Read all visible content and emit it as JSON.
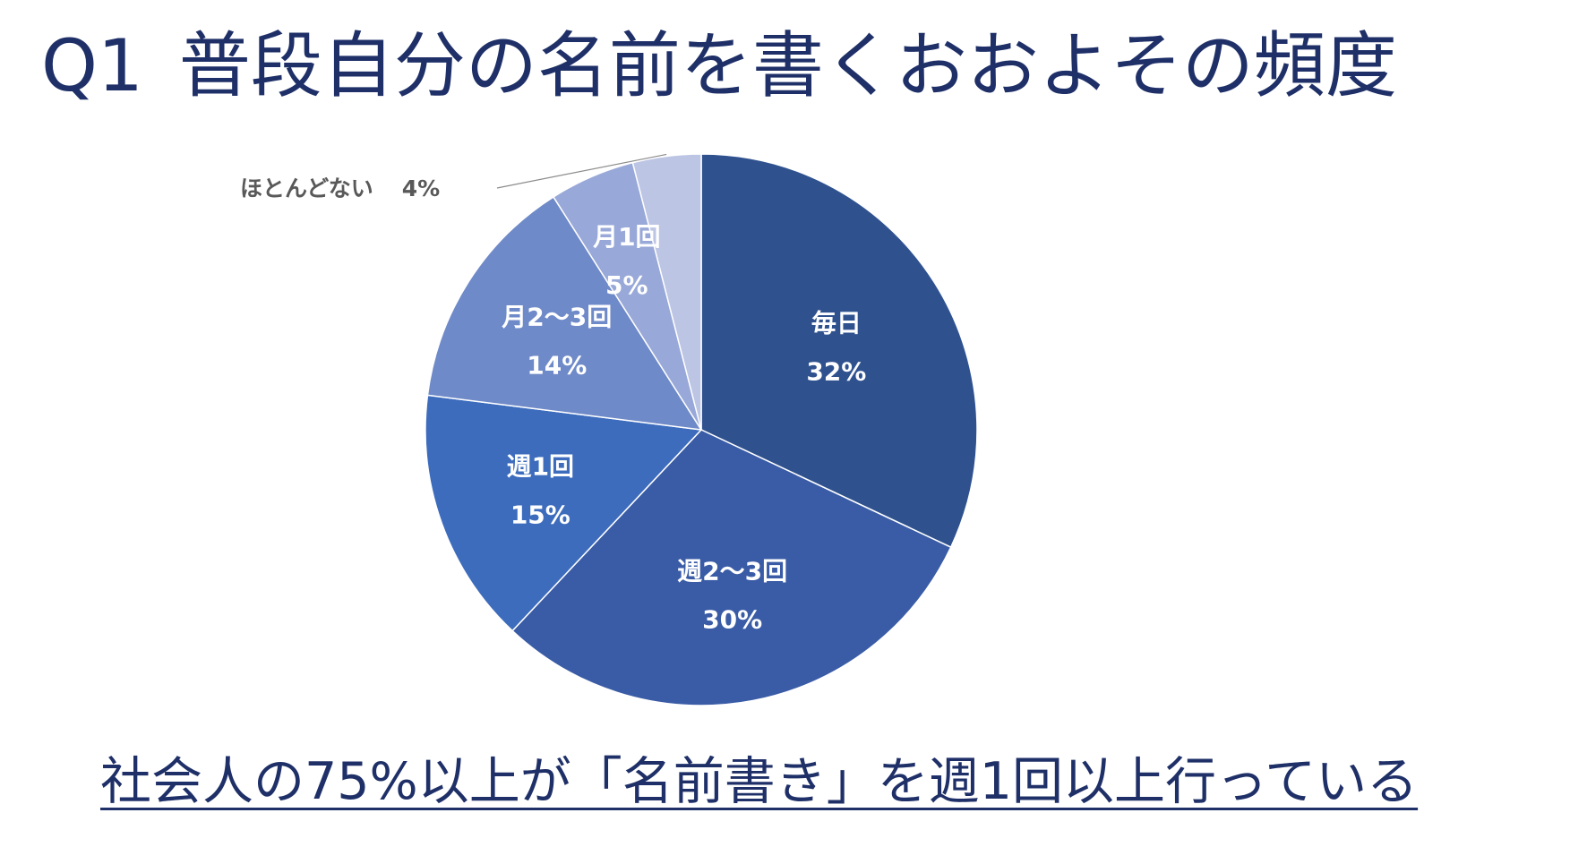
{
  "slide": {
    "question_number": "Q1",
    "title": "普段自分の名前を書くおおよその頻度",
    "conclusion": "社会人の75%以上が「名前書き」を週1回以上行っている"
  },
  "chart_data": {
    "type": "pie",
    "title": "普段自分の名前を書くおおよその頻度",
    "start_angle_deg": 0,
    "direction": "clockwise",
    "slices": [
      {
        "label": "毎日",
        "value": 32,
        "value_label": "32%",
        "color": "#2f528f",
        "label_position": "inside"
      },
      {
        "label": "週2〜3回",
        "value": 30,
        "value_label": "30%",
        "color": "#3a5ca6",
        "label_position": "inside"
      },
      {
        "label": "週1回",
        "value": 15,
        "value_label": "15%",
        "color": "#3d6cbd",
        "label_position": "inside"
      },
      {
        "label": "月2〜3回",
        "value": 14,
        "value_label": "14%",
        "color": "#6f8ac8",
        "label_position": "inside"
      },
      {
        "label": "月1回",
        "value": 5,
        "value_label": "5%",
        "color": "#98a8d8",
        "label_position": "inside"
      },
      {
        "label": "ほとんどない",
        "value": 4,
        "value_label": "4%",
        "color": "#bcc5e4",
        "label_position": "outside"
      }
    ]
  }
}
